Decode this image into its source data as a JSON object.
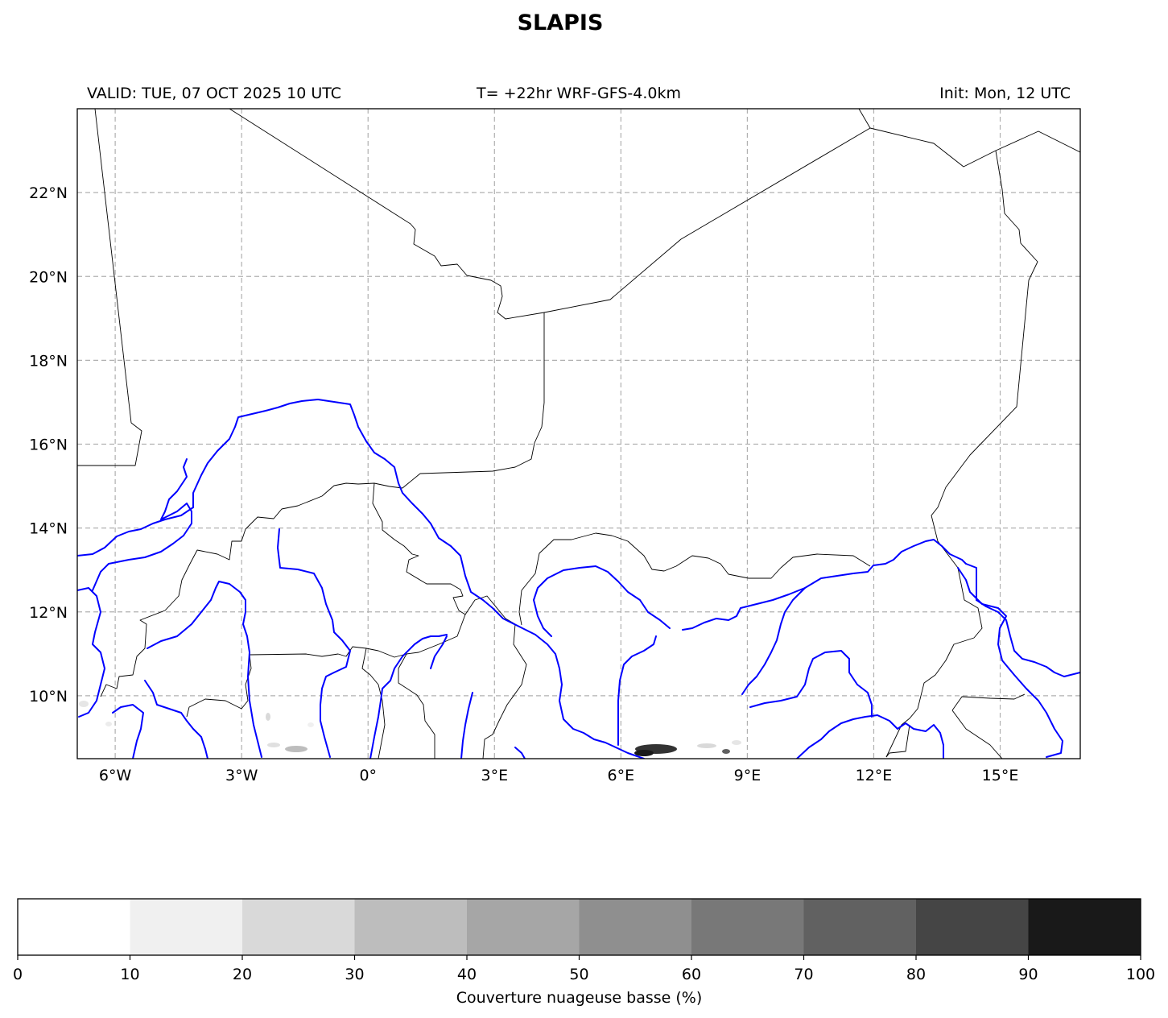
{
  "title": "SLAPIS",
  "header": {
    "valid": "VALID: TUE, 07 OCT 2025 10 UTC",
    "model": "T= +22hr WRF-GFS-4.0km",
    "init": "Init: Mon, 12 UTC"
  },
  "map": {
    "lon_range": [
      -6.9,
      16.9
    ],
    "lat_range": [
      8.5,
      24.0
    ],
    "lon_ticks": [
      {
        "value": -6,
        "label": "6°W"
      },
      {
        "value": -3,
        "label": "3°W"
      },
      {
        "value": 0,
        "label": "0°"
      },
      {
        "value": 3,
        "label": "3°E"
      },
      {
        "value": 6,
        "label": "6°E"
      },
      {
        "value": 9,
        "label": "9°E"
      },
      {
        "value": 12,
        "label": "12°E"
      },
      {
        "value": 15,
        "label": "15°E"
      }
    ],
    "lat_ticks": [
      {
        "value": 10,
        "label": "10°N"
      },
      {
        "value": 12,
        "label": "12°N"
      },
      {
        "value": 14,
        "label": "14°N"
      },
      {
        "value": 16,
        "label": "16°N"
      },
      {
        "value": 18,
        "label": "18°N"
      },
      {
        "value": 20,
        "label": "20°N"
      },
      {
        "value": 22,
        "label": "22°N"
      }
    ],
    "grid": true,
    "border_color": "#000000",
    "river_color": "#0000ff"
  },
  "colorbar": {
    "label": "Couverture nuageuse basse (%)",
    "ticks": [
      "0",
      "10",
      "20",
      "30",
      "40",
      "50",
      "60",
      "70",
      "80",
      "90",
      "100"
    ],
    "colors": [
      "#ffffff",
      "#f0f0f0",
      "#d9d9d9",
      "#bdbdbd",
      "#a6a6a6",
      "#8f8f8f",
      "#787878",
      "#616161",
      "#454545",
      "#191919"
    ]
  }
}
